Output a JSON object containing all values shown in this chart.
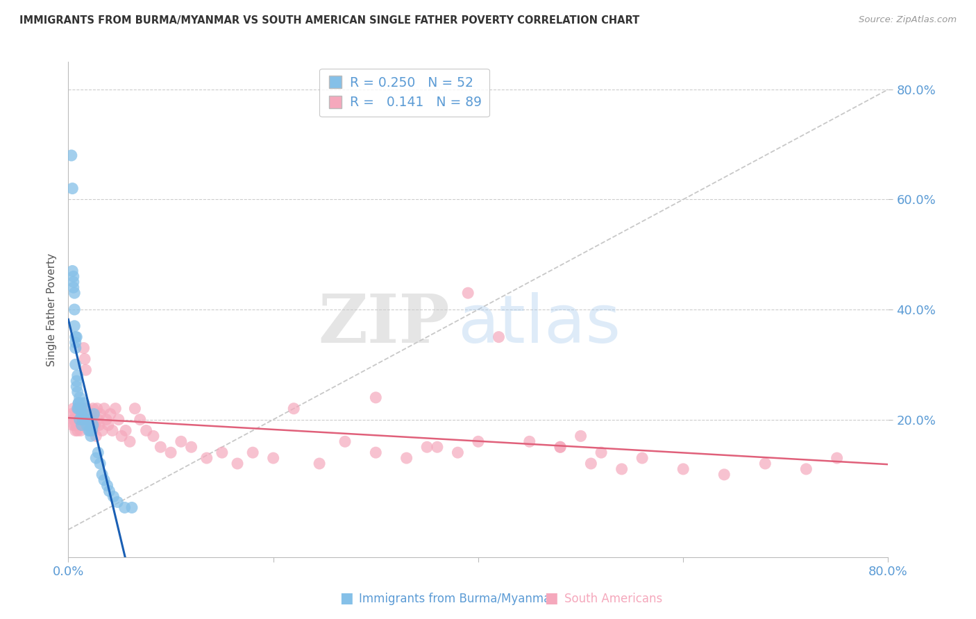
{
  "title": "IMMIGRANTS FROM BURMA/MYANMAR VS SOUTH AMERICAN SINGLE FATHER POVERTY CORRELATION CHART",
  "source": "Source: ZipAtlas.com",
  "ylabel": "Single Father Poverty",
  "xlim": [
    0.0,
    0.8
  ],
  "ylim": [
    -0.05,
    0.85
  ],
  "blue_R": 0.25,
  "blue_N": 52,
  "pink_R": 0.141,
  "pink_N": 89,
  "blue_color": "#85C0E8",
  "pink_color": "#F5A8BC",
  "blue_line_color": "#1A5FB4",
  "pink_line_color": "#E0607A",
  "diagonal_color": "#C8C8C8",
  "grid_color": "#CCCCCC",
  "title_color": "#333333",
  "axis_label_color": "#5B9BD5",
  "legend_label_blue": "Immigrants from Burma/Myanmar",
  "legend_label_pink": "South Americans",
  "blue_x": [
    0.003,
    0.004,
    0.004,
    0.005,
    0.005,
    0.005,
    0.006,
    0.006,
    0.006,
    0.007,
    0.007,
    0.007,
    0.007,
    0.008,
    0.008,
    0.008,
    0.009,
    0.009,
    0.009,
    0.01,
    0.01,
    0.01,
    0.011,
    0.011,
    0.012,
    0.012,
    0.013,
    0.013,
    0.014,
    0.015,
    0.015,
    0.016,
    0.017,
    0.018,
    0.019,
    0.02,
    0.021,
    0.022,
    0.023,
    0.024,
    0.025,
    0.027,
    0.029,
    0.031,
    0.033,
    0.035,
    0.038,
    0.04,
    0.044,
    0.048,
    0.055,
    0.062
  ],
  "blue_y": [
    0.68,
    0.62,
    0.47,
    0.46,
    0.45,
    0.44,
    0.43,
    0.4,
    0.37,
    0.35,
    0.34,
    0.33,
    0.3,
    0.35,
    0.27,
    0.26,
    0.28,
    0.25,
    0.22,
    0.23,
    0.23,
    0.22,
    0.24,
    0.2,
    0.22,
    0.23,
    0.21,
    0.19,
    0.2,
    0.22,
    0.23,
    0.21,
    0.2,
    0.19,
    0.2,
    0.18,
    0.18,
    0.17,
    0.18,
    0.19,
    0.21,
    0.13,
    0.14,
    0.12,
    0.1,
    0.09,
    0.08,
    0.07,
    0.06,
    0.05,
    0.04,
    0.04
  ],
  "pink_x": [
    0.003,
    0.004,
    0.005,
    0.005,
    0.006,
    0.006,
    0.007,
    0.007,
    0.008,
    0.008,
    0.009,
    0.009,
    0.01,
    0.01,
    0.011,
    0.011,
    0.012,
    0.012,
    0.013,
    0.013,
    0.014,
    0.015,
    0.015,
    0.016,
    0.017,
    0.018,
    0.018,
    0.019,
    0.02,
    0.021,
    0.022,
    0.023,
    0.024,
    0.025,
    0.026,
    0.027,
    0.028,
    0.029,
    0.03,
    0.031,
    0.033,
    0.035,
    0.037,
    0.039,
    0.041,
    0.043,
    0.046,
    0.049,
    0.052,
    0.056,
    0.06,
    0.065,
    0.07,
    0.076,
    0.083,
    0.09,
    0.1,
    0.11,
    0.12,
    0.135,
    0.15,
    0.165,
    0.18,
    0.2,
    0.22,
    0.245,
    0.27,
    0.3,
    0.33,
    0.36,
    0.39,
    0.42,
    0.45,
    0.48,
    0.51,
    0.54,
    0.48,
    0.5,
    0.52,
    0.56,
    0.6,
    0.64,
    0.68,
    0.72,
    0.75,
    0.4,
    0.38,
    0.35,
    0.3
  ],
  "pink_y": [
    0.21,
    0.19,
    0.22,
    0.2,
    0.2,
    0.19,
    0.21,
    0.18,
    0.2,
    0.19,
    0.22,
    0.18,
    0.21,
    0.22,
    0.2,
    0.19,
    0.21,
    0.18,
    0.22,
    0.2,
    0.19,
    0.21,
    0.33,
    0.31,
    0.29,
    0.22,
    0.2,
    0.21,
    0.19,
    0.2,
    0.21,
    0.18,
    0.22,
    0.2,
    0.19,
    0.17,
    0.22,
    0.2,
    0.19,
    0.21,
    0.18,
    0.22,
    0.2,
    0.19,
    0.21,
    0.18,
    0.22,
    0.2,
    0.17,
    0.18,
    0.16,
    0.22,
    0.2,
    0.18,
    0.17,
    0.15,
    0.14,
    0.16,
    0.15,
    0.13,
    0.14,
    0.12,
    0.14,
    0.13,
    0.22,
    0.12,
    0.16,
    0.14,
    0.13,
    0.15,
    0.43,
    0.35,
    0.16,
    0.15,
    0.12,
    0.11,
    0.15,
    0.17,
    0.14,
    0.13,
    0.11,
    0.1,
    0.12,
    0.11,
    0.13,
    0.16,
    0.14,
    0.15,
    0.24
  ]
}
